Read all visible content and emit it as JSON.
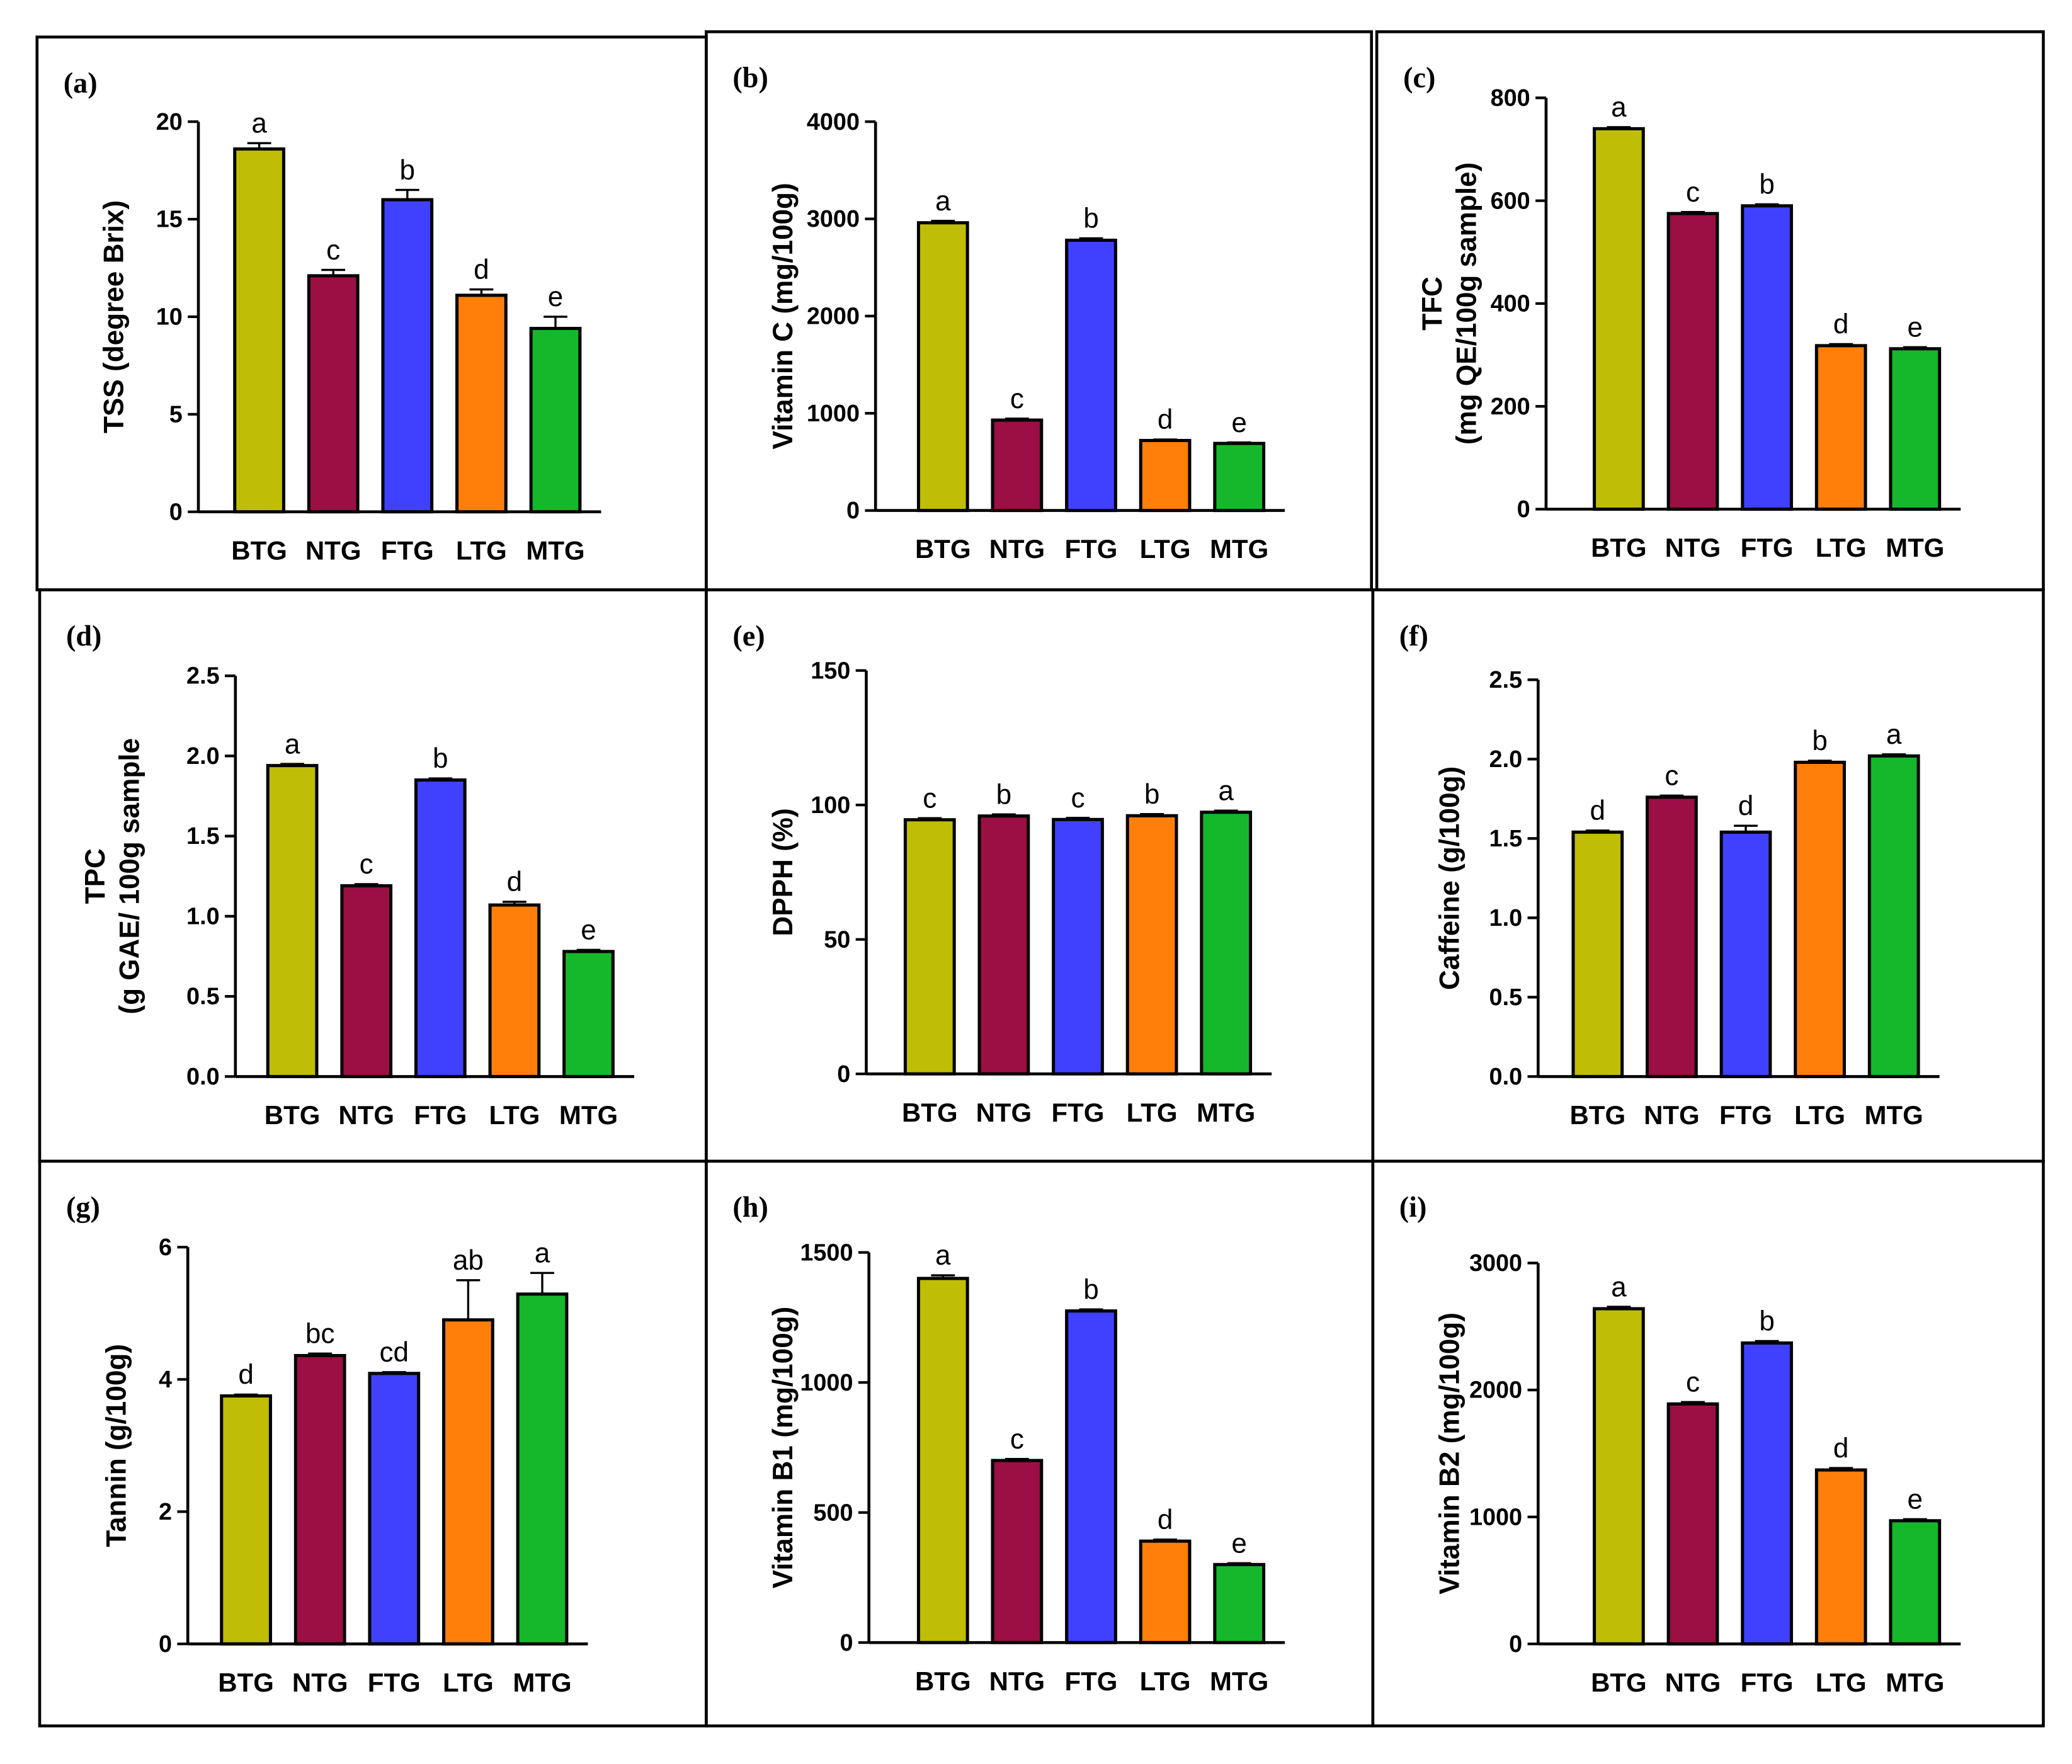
{
  "categories": [
    "BTG",
    "NTG",
    "FTG",
    "LTG",
    "MTG"
  ],
  "colors": {
    "BTG": "#bfbd05",
    "NTG": "#9b0f45",
    "FTG": "#4040ff",
    "LTG": "#ff7f0a",
    "MTG": "#15b82b",
    "axis": "#000000",
    "frame": "#000000"
  },
  "chart_data": [
    {
      "panel": "(a)",
      "type": "bar",
      "title": "",
      "ylabel": [
        "TSS (degree Brix)"
      ],
      "categories": [
        "BTG",
        "NTG",
        "FTG",
        "LTG",
        "MTG"
      ],
      "values": [
        18.6,
        12.1,
        16.0,
        11.1,
        9.4
      ],
      "errors": [
        0.3,
        0.3,
        0.5,
        0.3,
        0.6
      ],
      "letters": [
        "a",
        "c",
        "b",
        "d",
        "e"
      ],
      "ylim": [
        0,
        20
      ],
      "yticks": [
        "0",
        "5",
        "10",
        "15",
        "20"
      ]
    },
    {
      "panel": "(b)",
      "type": "bar",
      "title": "",
      "ylabel": [
        "Vitamin C (mg/100g)"
      ],
      "categories": [
        "BTG",
        "NTG",
        "FTG",
        "LTG",
        "MTG"
      ],
      "values": [
        2960,
        930,
        2780,
        720,
        690
      ],
      "errors": [
        20,
        15,
        20,
        10,
        10
      ],
      "letters": [
        "a",
        "c",
        "b",
        "d",
        "e"
      ],
      "ylim": [
        0,
        4000
      ],
      "yticks": [
        "0",
        "1000",
        "2000",
        "3000",
        "4000"
      ]
    },
    {
      "panel": "(c)",
      "type": "bar",
      "title": "",
      "ylabel": [
        "TFC",
        "(mg QE/100g sample)"
      ],
      "categories": [
        "BTG",
        "NTG",
        "FTG",
        "LTG",
        "MTG"
      ],
      "values": [
        740,
        575,
        590,
        318,
        312
      ],
      "errors": [
        3,
        3,
        3,
        3,
        3
      ],
      "letters": [
        "a",
        "c",
        "b",
        "d",
        "e"
      ],
      "ylim": [
        0,
        800
      ],
      "yticks": [
        "0",
        "200",
        "400",
        "600",
        "800"
      ]
    },
    {
      "panel": "(d)",
      "type": "bar",
      "title": "",
      "ylabel": [
        "TPC",
        "(g GAE/ 100g sample"
      ],
      "categories": [
        "BTG",
        "NTG",
        "FTG",
        "LTG",
        "MTG"
      ],
      "values": [
        1.94,
        1.19,
        1.85,
        1.07,
        0.78
      ],
      "errors": [
        0.01,
        0.01,
        0.01,
        0.02,
        0.01
      ],
      "letters": [
        "a",
        "c",
        "b",
        "d",
        "e"
      ],
      "ylim": [
        0,
        2.5
      ],
      "yticks": [
        "0.0",
        "0.5",
        "1.0",
        "1.5",
        "2.0",
        "2.5"
      ]
    },
    {
      "panel": "(e)",
      "type": "bar",
      "title": "",
      "ylabel": [
        "DPPH (%)"
      ],
      "categories": [
        "BTG",
        "NTG",
        "FTG",
        "LTG",
        "MTG"
      ],
      "values": [
        94.5,
        95.9,
        94.6,
        96.0,
        97.3
      ],
      "errors": [
        0.6,
        0.6,
        0.6,
        0.6,
        0.6
      ],
      "letters": [
        "c",
        "b",
        "c",
        "b",
        "a"
      ],
      "ylim": [
        0,
        150
      ],
      "yticks": [
        "0",
        "50",
        "100",
        "150"
      ]
    },
    {
      "panel": "(f)",
      "type": "bar",
      "title": "",
      "ylabel": [
        "Caffeine (g/100g)"
      ],
      "categories": [
        "BTG",
        "NTG",
        "FTG",
        "LTG",
        "MTG"
      ],
      "values": [
        1.54,
        1.76,
        1.54,
        1.98,
        2.02
      ],
      "errors": [
        0.01,
        0.01,
        0.04,
        0.01,
        0.01
      ],
      "letters": [
        "d",
        "c",
        "d",
        "b",
        "a"
      ],
      "ylim": [
        0,
        2.5
      ],
      "yticks": [
        "0.0",
        "0.5",
        "1.0",
        "1.5",
        "2.0",
        "2.5"
      ]
    },
    {
      "panel": "(g)",
      "type": "bar",
      "title": "",
      "ylabel": [
        "Tannin (g/100g)"
      ],
      "categories": [
        "BTG",
        "NTG",
        "FTG",
        "LTG",
        "MTG"
      ],
      "values": [
        3.75,
        4.36,
        4.09,
        4.9,
        5.29
      ],
      "errors": [
        0.02,
        0.03,
        0.02,
        0.6,
        0.32
      ],
      "letters": [
        "d",
        "bc",
        "cd",
        "ab",
        "a"
      ],
      "ylim": [
        0,
        6
      ],
      "yticks": [
        "0",
        "2",
        "4",
        "6"
      ]
    },
    {
      "panel": "(h)",
      "type": "bar",
      "title": "",
      "ylabel": [
        "Vitamin B1 (mg/100g)"
      ],
      "categories": [
        "BTG",
        "NTG",
        "FTG",
        "LTG",
        "MTG"
      ],
      "values": [
        1400,
        700,
        1275,
        390,
        300
      ],
      "errors": [
        12,
        6,
        6,
        6,
        5
      ],
      "letters": [
        "a",
        "c",
        "b",
        "d",
        "e"
      ],
      "ylim": [
        0,
        1500
      ],
      "yticks": [
        "0",
        "500",
        "1000",
        "1500"
      ]
    },
    {
      "panel": "(i)",
      "type": "bar",
      "title": "",
      "ylabel": [
        "Vitamin B2 (mg/100g)"
      ],
      "categories": [
        "BTG",
        "NTG",
        "FTG",
        "LTG",
        "MTG"
      ],
      "values": [
        2640,
        1890,
        2370,
        1370,
        970
      ],
      "errors": [
        15,
        15,
        15,
        15,
        12
      ],
      "letters": [
        "a",
        "c",
        "b",
        "d",
        "e"
      ],
      "ylim": [
        0,
        3000
      ],
      "yticks": [
        "0",
        "1000",
        "2000",
        "3000"
      ]
    }
  ]
}
